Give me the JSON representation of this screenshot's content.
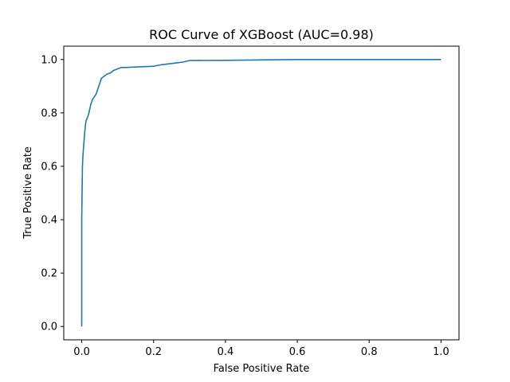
{
  "chart_data": {
    "type": "line",
    "title": "ROC Curve of XGBoost (AUC=0.98)",
    "xlabel": "False Positive Rate",
    "ylabel": "True Positive Rate",
    "xlim": [
      -0.05,
      1.05
    ],
    "ylim": [
      -0.05,
      1.05
    ],
    "xticks": [
      0.0,
      0.2,
      0.4,
      0.6,
      0.8,
      1.0
    ],
    "yticks": [
      0.0,
      0.2,
      0.4,
      0.6,
      0.8,
      1.0
    ],
    "xtick_labels": [
      "0.0",
      "0.2",
      "0.4",
      "0.6",
      "0.8",
      "1.0"
    ],
    "ytick_labels": [
      "0.0",
      "0.2",
      "0.4",
      "0.6",
      "0.8",
      "1.0"
    ],
    "grid": false,
    "line_color": "#1f77b4",
    "series": [
      {
        "x": [
          0.0,
          0.0,
          0.002,
          0.003,
          0.005,
          0.008,
          0.01,
          0.012,
          0.015,
          0.018,
          0.02,
          0.025,
          0.03,
          0.035,
          0.04,
          0.045,
          0.05,
          0.055,
          0.06,
          0.065,
          0.07,
          0.08,
          0.09,
          0.1,
          0.11,
          0.12,
          0.15,
          0.2,
          0.22,
          0.25,
          0.28,
          0.3,
          0.4,
          0.54,
          0.6,
          0.8,
          1.0
        ],
        "y": [
          0.0,
          0.4,
          0.6,
          0.63,
          0.67,
          0.72,
          0.75,
          0.77,
          0.78,
          0.79,
          0.8,
          0.83,
          0.85,
          0.86,
          0.87,
          0.89,
          0.91,
          0.93,
          0.935,
          0.94,
          0.945,
          0.95,
          0.96,
          0.965,
          0.97,
          0.97,
          0.972,
          0.975,
          0.98,
          0.985,
          0.99,
          0.996,
          0.997,
          0.999,
          1.0,
          1.0,
          1.0
        ]
      }
    ]
  }
}
